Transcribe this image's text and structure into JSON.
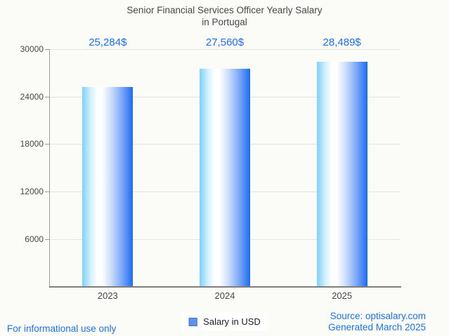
{
  "title": {
    "line1": "Senior Financial Services Officer Yearly Salary",
    "line2": "in Portugal"
  },
  "chart_data": {
    "type": "bar",
    "title": "Senior Financial Services Officer Yearly Salary in Portugal",
    "categories": [
      "2023",
      "2024",
      "2025"
    ],
    "series": [
      {
        "name": "Salary in USD",
        "values": [
          25284,
          27560,
          28489
        ],
        "value_labels": [
          "25,284$",
          "27,560$",
          "28,489$"
        ]
      }
    ],
    "xlabel": "",
    "ylabel": "",
    "ylim": [
      0,
      30000
    ],
    "yticks": [
      6000,
      12000,
      18000,
      24000,
      30000
    ],
    "ytick_labels": [
      "6000",
      "12000",
      "18000",
      "24000",
      "30000"
    ],
    "grid": true,
    "legend_position": "bottom-center",
    "bar_gradient": [
      "#7dd2f9",
      "#ffffff",
      "#1a6cf4"
    ]
  },
  "legend": {
    "label": "Salary in USD"
  },
  "footer": {
    "disclaimer": "For informational use only",
    "source": "Source: optisalary.com",
    "generated": "Generated March 2025"
  },
  "colors": {
    "accent_blue": "#1a73e8",
    "value_label_blue": "#1b6ef3",
    "text_dark": "#474747",
    "grid_line": "#e3e3e3",
    "axis_line": "#9b9b9b",
    "baseline": "#7e7e7e",
    "bar_left": "#7dd2f9",
    "bar_mid": "#ffffff",
    "bar_right": "#1a6cf4",
    "legend_swatch_fill": "#5f94ec",
    "legend_swatch_border": "#3e6fc4",
    "background": "#fbfbf8"
  }
}
